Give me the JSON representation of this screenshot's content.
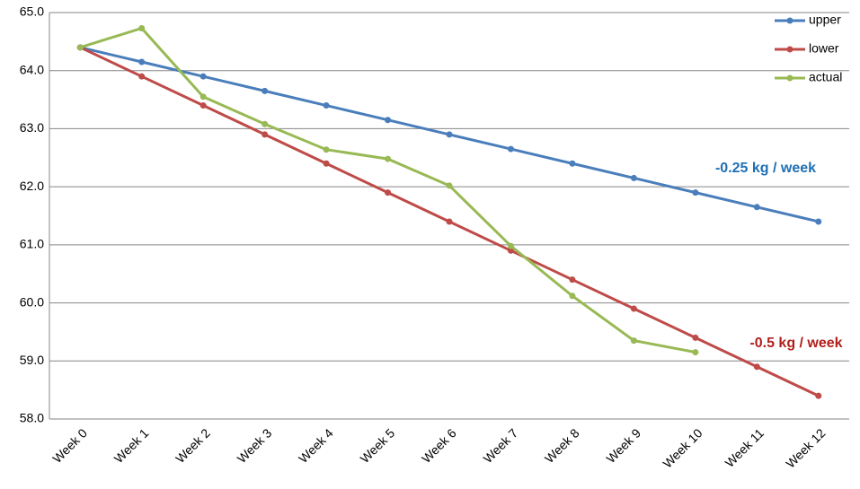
{
  "chart_data": {
    "type": "line",
    "categories": [
      "Week 0",
      "Week 1",
      "Week 2",
      "Week 3",
      "Week 4",
      "Week 5",
      "Week 6",
      "Week 7",
      "Week 8",
      "Week 9",
      "Week 10",
      "Week 11",
      "Week 12"
    ],
    "series": [
      {
        "name": "upper",
        "color": "#4a7ebb",
        "values": [
          64.4,
          64.15,
          63.9,
          63.65,
          63.4,
          63.15,
          62.9,
          62.65,
          62.4,
          62.15,
          61.9,
          61.65,
          61.4
        ]
      },
      {
        "name": "lower",
        "color": "#be4b48",
        "values": [
          64.4,
          63.9,
          63.4,
          62.9,
          62.4,
          61.9,
          61.4,
          60.9,
          60.4,
          59.9,
          59.4,
          58.9,
          58.4
        ]
      },
      {
        "name": "actual",
        "color": "#98b954",
        "values": [
          64.4,
          64.73,
          63.55,
          63.08,
          62.64,
          62.48,
          62.02,
          60.98,
          60.12,
          59.35,
          59.15,
          null,
          null
        ]
      }
    ],
    "ylim": [
      58,
      65
    ],
    "yticks": [
      {
        "value": 58,
        "label": "58.0"
      },
      {
        "value": 59,
        "label": "59.0"
      },
      {
        "value": 60,
        "label": "60.0"
      },
      {
        "value": 61,
        "label": "61.0"
      },
      {
        "value": 62,
        "label": "62.0"
      },
      {
        "value": 63,
        "label": "63.0"
      },
      {
        "value": 64,
        "label": "64.0"
      },
      {
        "value": 65,
        "label": "65.0"
      }
    ],
    "grid": true,
    "legend": "upper right",
    "annotations": [
      {
        "text": "-0.25 kg / week",
        "color": "#1f6fb4"
      },
      {
        "text": "-0.5 kg / week",
        "color": "#b0201c"
      }
    ]
  }
}
